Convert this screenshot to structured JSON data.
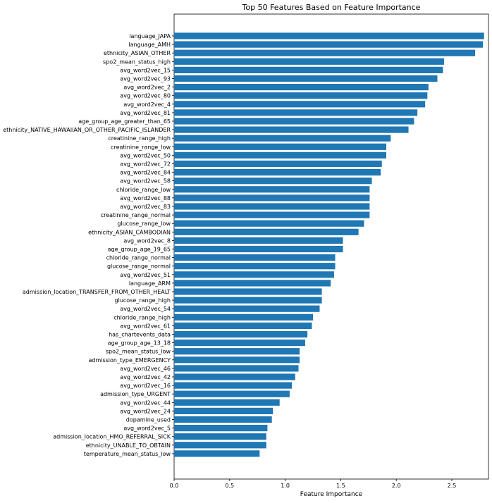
{
  "chart_data": {
    "type": "bar",
    "orientation": "horizontal",
    "title": "Top 50 Features Based on Feature Importance",
    "xlabel": "Feature Importance",
    "ylabel": "",
    "xlim": [
      0,
      2.83
    ],
    "xticks": [
      "0.0",
      "0.5",
      "1.0",
      "1.5",
      "2.0",
      "2.5"
    ],
    "grid": false,
    "bar_color": "#1f77b4",
    "categories": [
      "language_JAPA",
      "language_AMH",
      "ethnicity_ASIAN_OTHER",
      "spo2_mean_status_high",
      "avg_word2vec_15",
      "avg_word2vec_93",
      "avg_word2vec_2",
      "avg_word2vec_80",
      "avg_word2vec_4",
      "avg_word2vec_81",
      "age_group_age_greater_than_65",
      "ethnicity_NATIVE_HAWAIIAN_OR_OTHER_PACIFIC_ISLANDER",
      "creatinine_range_high",
      "creatinine_range_low",
      "avg_word2vec_50",
      "avg_word2vec_72",
      "avg_word2vec_84",
      "avg_word2vec_58",
      "chloride_range_low",
      "avg_word2vec_88",
      "avg_word2vec_83",
      "creatinine_range_normal",
      "glucose_range_low",
      "ethnicity_ASIAN_CAMBODIAN",
      "avg_word2vec_8",
      "age_group_age_19_65",
      "chloride_range_normal",
      "glucose_range_normal",
      "avg_word2vec_51",
      "language_ARM",
      "admission_location_TRANSFER_FROM_OTHER_HEALT",
      "glucose_range_high",
      "avg_word2vec_54",
      "chloride_range_high",
      "avg_word2vec_61",
      "has_chartevents_data",
      "age_group_age_13_18",
      "spo2_mean_status_low",
      "admission_type_EMERGENCY",
      "avg_word2vec_46",
      "avg_word2vec_42",
      "avg_word2vec_16",
      "admission_type_URGENT",
      "avg_word2vec_44",
      "avg_word2vec_24",
      "dopamine_used",
      "avg_word2vec_5",
      "admission_location_HMO_REFERRAL_SICK",
      "ethnicity_UNABLE_TO_OBTAIN",
      "temperature_mean_status_low"
    ],
    "values": [
      2.79,
      2.78,
      2.71,
      2.43,
      2.42,
      2.37,
      2.29,
      2.28,
      2.26,
      2.19,
      2.16,
      2.11,
      1.95,
      1.91,
      1.91,
      1.87,
      1.86,
      1.78,
      1.76,
      1.76,
      1.76,
      1.76,
      1.71,
      1.66,
      1.52,
      1.52,
      1.45,
      1.45,
      1.44,
      1.41,
      1.33,
      1.33,
      1.31,
      1.25,
      1.24,
      1.2,
      1.18,
      1.13,
      1.13,
      1.12,
      1.09,
      1.06,
      1.04,
      0.95,
      0.89,
      0.88,
      0.84,
      0.83,
      0.83,
      0.77
    ]
  }
}
